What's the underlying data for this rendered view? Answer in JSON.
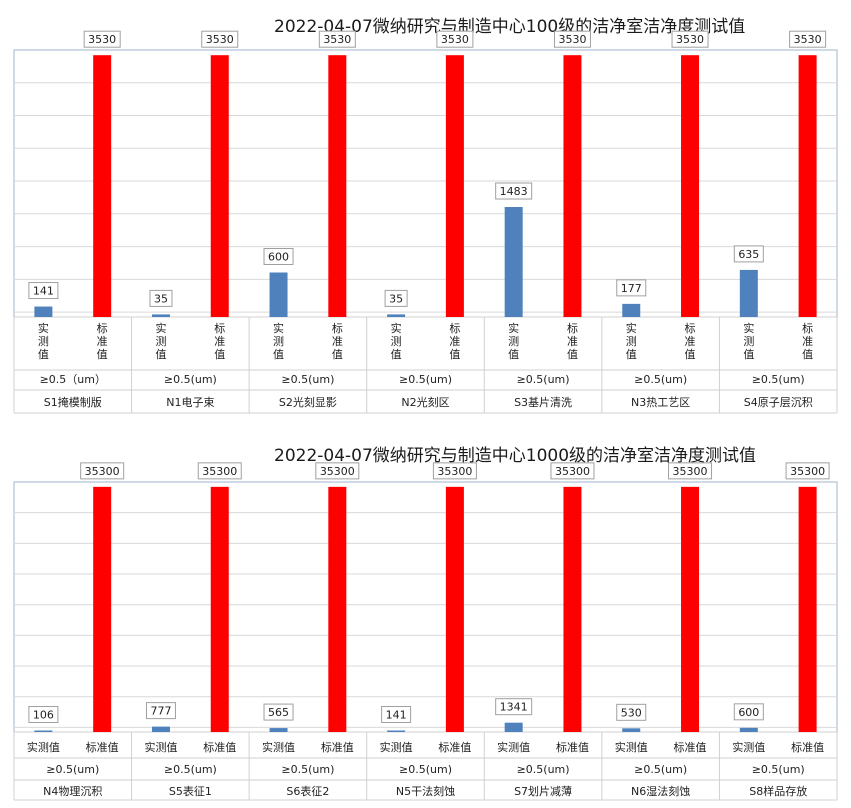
{
  "chart_data": [
    {
      "type": "bar",
      "title": "2022-04-07微纳研究与制造中心100级的洁净室洁净度测试值",
      "ylim": [
        0,
        3600
      ],
      "grid": true,
      "vertical_labels": true,
      "sub_labels": [
        "实测值",
        "标准值"
      ],
      "series": [
        {
          "name": "实测值",
          "color": "#4f81bd",
          "values": [
            141,
            35,
            600,
            35,
            1483,
            177,
            635
          ]
        },
        {
          "name": "标准值",
          "color": "#ff0000",
          "values": [
            3530,
            3530,
            3530,
            3530,
            3530,
            3530,
            3530
          ]
        }
      ],
      "particle_labels": [
        "≥0.5（um）",
        "≥0.5(um)",
        "≥0.5(um)",
        "≥0.5(um)",
        "≥0.5(um)",
        "≥0.5(um)",
        "≥0.5(um)"
      ],
      "categories": [
        "S1掩模制版",
        "N1电子束",
        "S2光刻显影",
        "N2光刻区",
        "S3基片清洗",
        "N3热工艺区",
        "S4原子层沉积"
      ]
    },
    {
      "type": "bar",
      "title": "2022-04-07微纳研究与制造中心1000级的洁净室洁净度测试值",
      "ylim": [
        0,
        36000
      ],
      "grid": true,
      "vertical_labels": false,
      "sub_labels": [
        "实测值",
        "标准值"
      ],
      "series": [
        {
          "name": "实测值",
          "color": "#4f81bd",
          "values": [
            106,
            777,
            565,
            141,
            1341,
            530,
            600
          ]
        },
        {
          "name": "标准值",
          "color": "#ff0000",
          "values": [
            35300,
            35300,
            35300,
            35300,
            35300,
            35300,
            35300
          ]
        }
      ],
      "particle_labels": [
        "≥0.5(um)",
        "≥0.5(um)",
        "≥0.5(um)",
        "≥0.5(um)",
        "≥0.5(um)",
        "≥0.5(um)",
        "≥0.5(um)"
      ],
      "categories": [
        "N4物理沉积",
        "S5表征1",
        "S6表征2",
        "N5干法刻蚀",
        "S7划片减薄",
        "N6湿法刻蚀",
        "S8样品存放"
      ]
    }
  ]
}
